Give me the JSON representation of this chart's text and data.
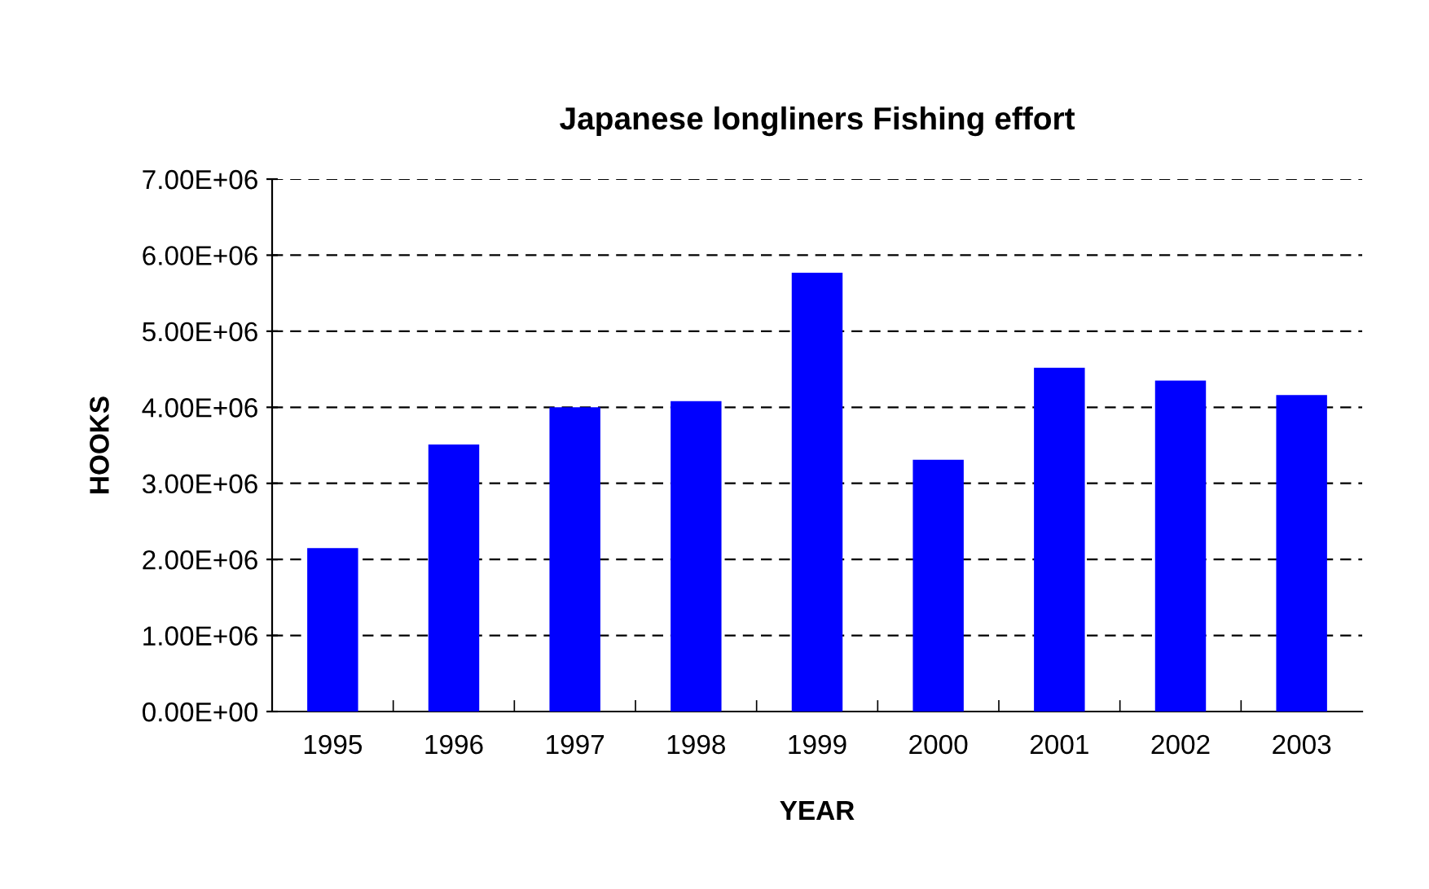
{
  "chart_data": {
    "type": "bar",
    "title": "Japanese longliners Fishing effort",
    "xlabel": "YEAR",
    "ylabel": "HOOKS",
    "categories": [
      "1995",
      "1996",
      "1997",
      "1998",
      "1999",
      "2000",
      "2001",
      "2002",
      "2003"
    ],
    "values": [
      2150000,
      3510000,
      4000000,
      4080000,
      5770000,
      3310000,
      4520000,
      4350000,
      4160000
    ],
    "color": "#0000ff",
    "ylim": [
      0,
      7000000
    ],
    "yticks": [
      {
        "value": 0,
        "label": "0.00E+00"
      },
      {
        "value": 1000000,
        "label": "1.00E+06"
      },
      {
        "value": 2000000,
        "label": "2.00E+06"
      },
      {
        "value": 3000000,
        "label": "3.00E+06"
      },
      {
        "value": 4000000,
        "label": "4.00E+06"
      },
      {
        "value": 5000000,
        "label": "5.00E+06"
      },
      {
        "value": 6000000,
        "label": "6.00E+06"
      },
      {
        "value": 7000000,
        "label": "7.00E+06"
      }
    ],
    "grid": "y",
    "line_style": "dashed"
  }
}
